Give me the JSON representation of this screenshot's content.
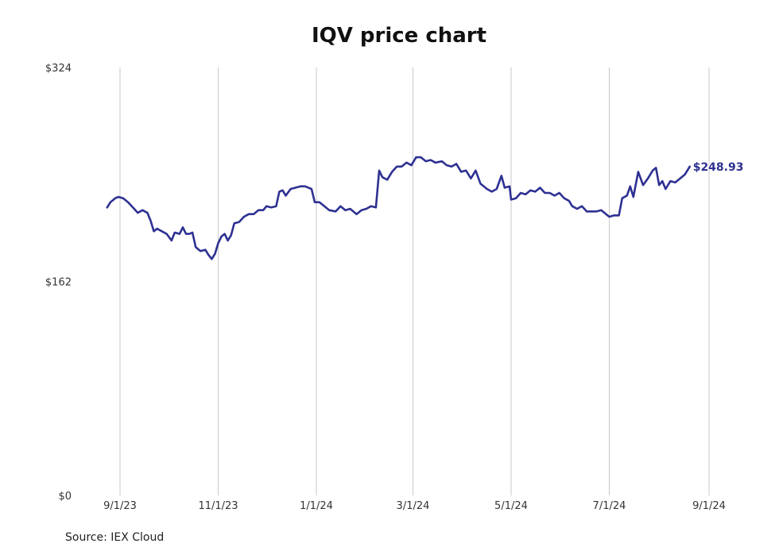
{
  "title": "IQV price chart",
  "source": "Source: IEX Cloud",
  "colors": {
    "line": "#2e3192",
    "grid": "#c8c8c8",
    "text": "#333333"
  },
  "chart_data": {
    "type": "line",
    "title": "IQV price chart",
    "xlabel": "",
    "ylabel": "",
    "ylim": [
      0,
      324
    ],
    "xlim": [
      "2023-08-23",
      "2024-09-13"
    ],
    "y_ticks": [
      {
        "value": 0,
        "label": "$0"
      },
      {
        "value": 162,
        "label": "$162"
      },
      {
        "value": 324,
        "label": "$324"
      }
    ],
    "x_ticks": [
      {
        "date": "2023-09-01",
        "label": "9/1/23"
      },
      {
        "date": "2023-11-01",
        "label": "11/1/23"
      },
      {
        "date": "2024-01-01",
        "label": "1/1/24"
      },
      {
        "date": "2024-03-01",
        "label": "3/1/24"
      },
      {
        "date": "2024-05-01",
        "label": "5/1/24"
      },
      {
        "date": "2024-07-01",
        "label": "7/1/24"
      },
      {
        "date": "2024-09-01",
        "label": "9/1/24"
      }
    ],
    "grid": {
      "vertical": true,
      "horizontal": false
    },
    "last_value_label": "$248.93",
    "series": [
      {
        "points": [
          [
            "2023-08-24",
            218
          ],
          [
            "2023-08-26",
            222
          ],
          [
            "2023-08-29",
            225
          ],
          [
            "2023-08-31",
            226
          ],
          [
            "2023-09-03",
            225
          ],
          [
            "2023-09-06",
            222
          ],
          [
            "2023-09-09",
            218
          ],
          [
            "2023-09-12",
            214
          ],
          [
            "2023-09-15",
            216
          ],
          [
            "2023-09-18",
            214
          ],
          [
            "2023-09-20",
            208
          ],
          [
            "2023-09-22",
            200
          ],
          [
            "2023-09-24",
            202
          ],
          [
            "2023-09-27",
            200
          ],
          [
            "2023-09-30",
            198
          ],
          [
            "2023-10-03",
            193
          ],
          [
            "2023-10-05",
            199
          ],
          [
            "2023-10-08",
            198
          ],
          [
            "2023-10-10",
            203
          ],
          [
            "2023-10-12",
            198
          ],
          [
            "2023-10-14",
            198
          ],
          [
            "2023-10-16",
            199
          ],
          [
            "2023-10-18",
            188
          ],
          [
            "2023-10-21",
            185
          ],
          [
            "2023-10-24",
            186
          ],
          [
            "2023-10-26",
            182
          ],
          [
            "2023-10-28",
            179
          ],
          [
            "2023-10-30",
            183
          ],
          [
            "2023-11-01",
            191
          ],
          [
            "2023-11-03",
            196
          ],
          [
            "2023-11-05",
            198
          ],
          [
            "2023-11-07",
            193
          ],
          [
            "2023-11-09",
            197
          ],
          [
            "2023-11-11",
            206
          ],
          [
            "2023-11-14",
            207
          ],
          [
            "2023-11-17",
            211
          ],
          [
            "2023-11-20",
            213
          ],
          [
            "2023-11-23",
            213
          ],
          [
            "2023-11-26",
            216
          ],
          [
            "2023-11-29",
            216
          ],
          [
            "2023-12-01",
            219
          ],
          [
            "2023-12-04",
            218
          ],
          [
            "2023-12-07",
            219
          ],
          [
            "2023-12-09",
            230
          ],
          [
            "2023-12-11",
            231
          ],
          [
            "2023-12-13",
            227
          ],
          [
            "2023-12-16",
            232
          ],
          [
            "2023-12-19",
            233
          ],
          [
            "2023-12-22",
            234
          ],
          [
            "2023-12-25",
            234
          ],
          [
            "2023-12-29",
            232
          ],
          [
            "2023-12-31",
            222
          ],
          [
            "2024-01-03",
            222
          ],
          [
            "2024-01-06",
            219
          ],
          [
            "2024-01-09",
            216
          ],
          [
            "2024-01-13",
            215
          ],
          [
            "2024-01-16",
            219
          ],
          [
            "2024-01-19",
            216
          ],
          [
            "2024-01-22",
            217
          ],
          [
            "2024-01-26",
            213
          ],
          [
            "2024-01-29",
            216
          ],
          [
            "2024-02-01",
            217
          ],
          [
            "2024-02-04",
            219
          ],
          [
            "2024-02-07",
            218
          ],
          [
            "2024-02-09",
            246
          ],
          [
            "2024-02-11",
            241
          ],
          [
            "2024-02-14",
            239
          ],
          [
            "2024-02-17",
            245
          ],
          [
            "2024-02-20",
            249
          ],
          [
            "2024-02-23",
            249
          ],
          [
            "2024-02-26",
            252
          ],
          [
            "2024-02-29",
            250
          ],
          [
            "2024-03-03",
            256
          ],
          [
            "2024-03-06",
            256
          ],
          [
            "2024-03-09",
            253
          ],
          [
            "2024-03-12",
            254
          ],
          [
            "2024-03-15",
            252
          ],
          [
            "2024-03-19",
            253
          ],
          [
            "2024-03-22",
            250
          ],
          [
            "2024-03-25",
            249
          ],
          [
            "2024-03-28",
            251
          ],
          [
            "2024-03-31",
            245
          ],
          [
            "2024-04-03",
            246
          ],
          [
            "2024-04-06",
            240
          ],
          [
            "2024-04-09",
            246
          ],
          [
            "2024-04-12",
            236
          ],
          [
            "2024-04-16",
            232
          ],
          [
            "2024-04-19",
            230
          ],
          [
            "2024-04-22",
            232
          ],
          [
            "2024-04-25",
            242
          ],
          [
            "2024-04-27",
            233
          ],
          [
            "2024-04-30",
            234
          ],
          [
            "2024-05-01",
            224
          ],
          [
            "2024-05-04",
            225
          ],
          [
            "2024-05-07",
            229
          ],
          [
            "2024-05-10",
            228
          ],
          [
            "2024-05-13",
            231
          ],
          [
            "2024-05-16",
            230
          ],
          [
            "2024-05-19",
            233
          ],
          [
            "2024-05-22",
            229
          ],
          [
            "2024-05-25",
            229
          ],
          [
            "2024-05-28",
            227
          ],
          [
            "2024-05-31",
            229
          ],
          [
            "2024-06-03",
            225
          ],
          [
            "2024-06-06",
            223
          ],
          [
            "2024-06-08",
            219
          ],
          [
            "2024-06-11",
            217
          ],
          [
            "2024-06-14",
            219
          ],
          [
            "2024-06-17",
            215
          ],
          [
            "2024-06-20",
            215
          ],
          [
            "2024-06-23",
            215
          ],
          [
            "2024-06-26",
            216
          ],
          [
            "2024-06-29",
            213
          ],
          [
            "2024-07-01",
            211
          ],
          [
            "2024-07-04",
            212
          ],
          [
            "2024-07-07",
            212
          ],
          [
            "2024-07-09",
            225
          ],
          [
            "2024-07-12",
            227
          ],
          [
            "2024-07-14",
            234
          ],
          [
            "2024-07-16",
            226
          ],
          [
            "2024-07-19",
            245
          ],
          [
            "2024-07-22",
            235
          ],
          [
            "2024-07-25",
            240
          ],
          [
            "2024-07-28",
            246
          ],
          [
            "2024-07-30",
            248
          ],
          [
            "2024-08-01",
            235
          ],
          [
            "2024-08-03",
            238
          ],
          [
            "2024-08-05",
            232
          ],
          [
            "2024-08-08",
            238
          ],
          [
            "2024-08-11",
            237
          ],
          [
            "2024-08-14",
            240
          ],
          [
            "2024-08-17",
            243
          ],
          [
            "2024-08-20",
            249
          ]
        ]
      }
    ]
  }
}
